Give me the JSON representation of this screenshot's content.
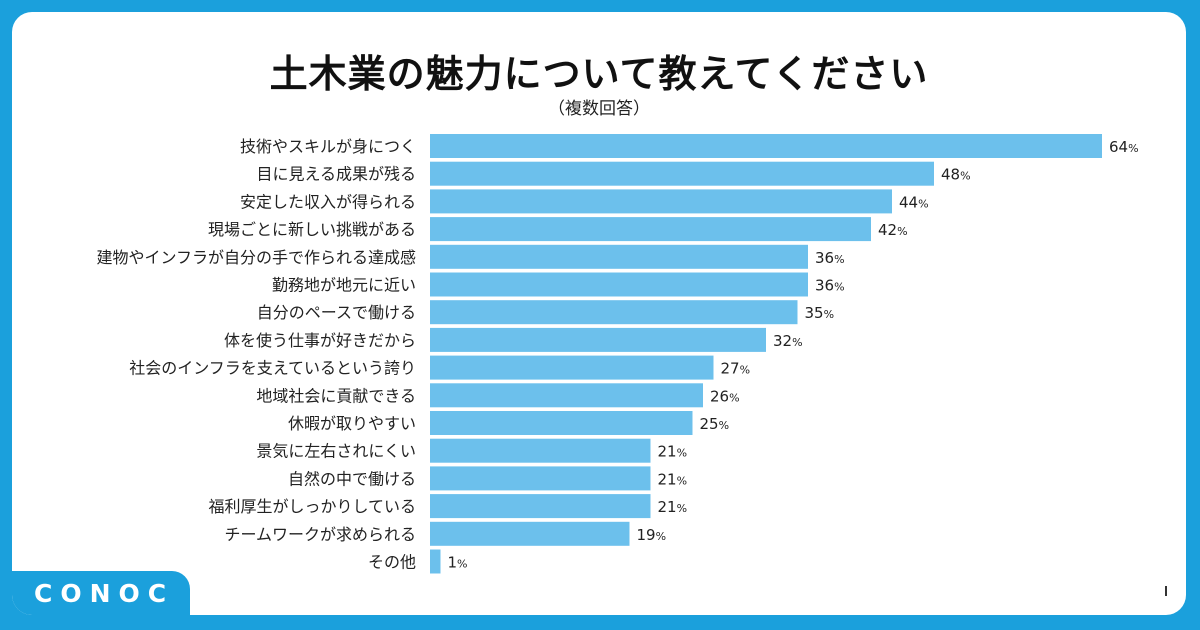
{
  "title": "土木業の魅力について教えてください",
  "subtitle": "（複数回答）",
  "brand": "CONOC",
  "colors": {
    "bar": "#6cc0ec",
    "frame": "#1ba0dc",
    "text": "#222222"
  },
  "chart_data": {
    "type": "bar",
    "orientation": "horizontal",
    "title": "土木業の魅力について教えてください",
    "subtitle": "（複数回答）",
    "xlim": [
      0,
      100
    ],
    "unit": "%",
    "grid": false,
    "legend": "none",
    "categories": [
      "技術やスキルが身につく",
      "目に見える成果が残る",
      "安定した収入が得られる",
      "現場ごとに新しい挑戦がある",
      "建物やインフラが自分の手で作られる達成感",
      "勤務地が地元に近い",
      "自分のペースで働ける",
      "体を使う仕事が好きだから",
      "社会のインフラを支えているという誇り",
      "地域社会に貢献できる",
      "休暇が取りやすい",
      "景気に左右されにくい",
      "自然の中で働ける",
      "福利厚生がしっかりしている",
      "チームワークが求められる",
      "その他"
    ],
    "values": [
      64,
      48,
      44,
      42,
      36,
      36,
      35,
      32,
      27,
      26,
      25,
      21,
      21,
      21,
      19,
      1
    ]
  }
}
